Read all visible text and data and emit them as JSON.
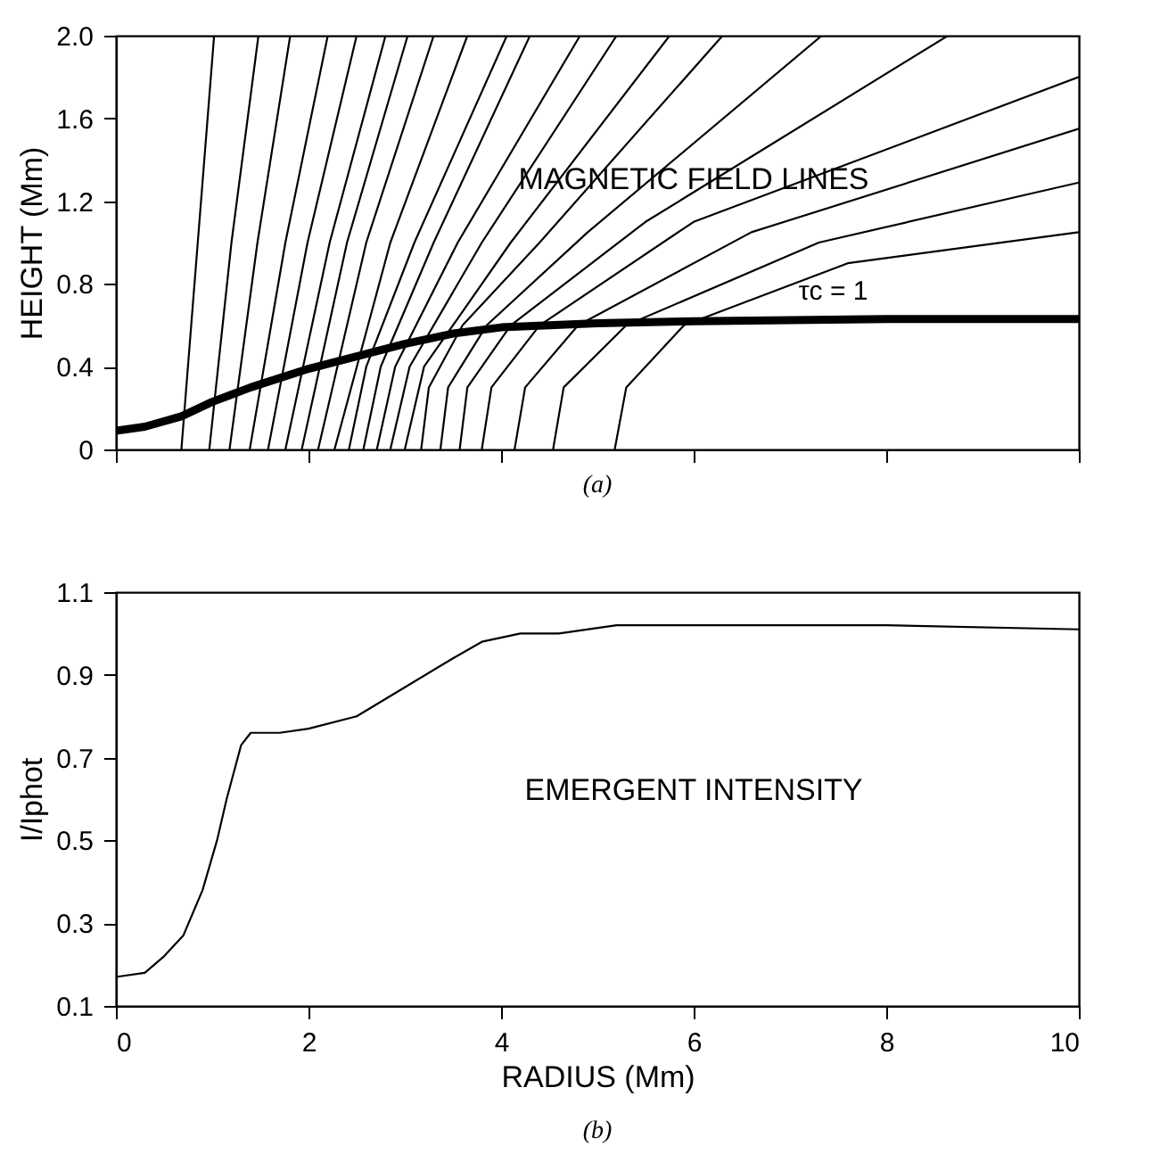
{
  "chart_data": [
    {
      "type": "line",
      "ylabel": "HEIGHT (Mm)",
      "xlim": [
        0,
        10
      ],
      "xticks": [
        0,
        2,
        4,
        6,
        8,
        10
      ],
      "ylim": [
        0,
        2
      ],
      "yticks": [
        0,
        0.4,
        0.8,
        1.2,
        1.6,
        {
          "value": 2,
          "label": "2.0"
        }
      ],
      "tick_labels": "y",
      "grid": false,
      "annotations": [
        "MAGNETIC FIELD LINES",
        "(a)"
      ],
      "series": [
        {
          "color": "#000000",
          "x": [
            0.68,
            0.85,
            1.02
          ],
          "values": [
            0,
            1,
            2
          ]
        },
        {
          "color": "#000000",
          "x": [
            0.97,
            1.2,
            1.48
          ],
          "values": [
            0,
            1,
            2
          ]
        },
        {
          "color": "#000000",
          "x": [
            1.18,
            1.47,
            1.81
          ],
          "values": [
            0,
            1,
            2
          ]
        },
        {
          "color": "#000000",
          "x": [
            1.39,
            1.76,
            2.2
          ],
          "values": [
            0,
            1,
            2
          ]
        },
        {
          "color": "#000000",
          "x": [
            1.58,
            1.99,
            2.5
          ],
          "values": [
            0,
            1,
            2
          ]
        },
        {
          "color": "#000000",
          "x": [
            1.76,
            2.22,
            2.8
          ],
          "values": [
            0,
            1,
            2
          ]
        },
        {
          "color": "#000000",
          "x": [
            1.93,
            2.4,
            3.03
          ],
          "values": [
            0,
            1,
            2
          ]
        },
        {
          "color": "#000000",
          "x": [
            2.1,
            2.6,
            3.3
          ],
          "values": [
            0,
            1,
            2
          ]
        },
        {
          "color": "#000000",
          "x": [
            2.27,
            2.85,
            3.65
          ],
          "values": [
            0,
            1,
            2
          ]
        },
        {
          "color": "#000000",
          "x": [
            2.42,
            2.6,
            3.1,
            4.06
          ],
          "values": [
            0,
            0.4,
            1,
            2
          ]
        },
        {
          "color": "#000000",
          "x": [
            2.57,
            2.75,
            3.3,
            4.3
          ],
          "values": [
            0,
            0.4,
            1,
            2
          ]
        },
        {
          "color": "#000000",
          "x": [
            2.71,
            2.9,
            3.55,
            4.82
          ],
          "values": [
            0,
            0.4,
            1,
            2
          ]
        },
        {
          "color": "#000000",
          "x": [
            2.85,
            3.05,
            3.8,
            5.2
          ],
          "values": [
            0,
            0.4,
            1,
            2
          ]
        },
        {
          "color": "#000000",
          "x": [
            3.0,
            3.2,
            4.1,
            5.75
          ],
          "values": [
            0,
            0.4,
            1,
            2
          ]
        },
        {
          "color": "#000000",
          "x": [
            3.17,
            3.25,
            3.6,
            4.4,
            6.3
          ],
          "values": [
            0,
            0.3,
            0.6,
            1,
            2
          ]
        },
        {
          "color": "#000000",
          "x": [
            3.37,
            3.45,
            3.85,
            4.9,
            7.33
          ],
          "values": [
            0,
            0.3,
            0.6,
            1.05,
            2
          ]
        },
        {
          "color": "#000000",
          "x": [
            3.57,
            3.65,
            4.1,
            5.5,
            8.64
          ],
          "values": [
            0,
            0.3,
            0.6,
            1.1,
            2
          ]
        },
        {
          "color": "#000000",
          "x": [
            3.8,
            3.9,
            4.4,
            6.0,
            10
          ],
          "values": [
            0,
            0.3,
            0.6,
            1.1,
            1.8
          ]
        },
        {
          "color": "#000000",
          "x": [
            4.14,
            4.25,
            4.8,
            6.6,
            10
          ],
          "values": [
            0,
            0.3,
            0.6,
            1.05,
            1.55
          ]
        },
        {
          "color": "#000000",
          "x": [
            4.54,
            4.65,
            5.3,
            7.3,
            10
          ],
          "values": [
            0,
            0.3,
            0.6,
            1.0,
            1.29
          ]
        },
        {
          "color": "#000000",
          "x": [
            5.18,
            5.3,
            5.9,
            7.6,
            10
          ],
          "values": [
            0,
            0.3,
            0.6,
            0.9,
            1.05
          ]
        },
        {
          "name": "τc = 1",
          "color": "#000000",
          "x": [
            0,
            0.3,
            0.68,
            1.0,
            1.4,
            2.0,
            2.5,
            3.0,
            3.5,
            4.0,
            5.0,
            6.0,
            8.0,
            10.0
          ],
          "values": [
            0.09,
            0.11,
            0.16,
            0.23,
            0.3,
            0.39,
            0.45,
            0.51,
            0.56,
            0.59,
            0.61,
            0.62,
            0.63,
            0.63
          ]
        }
      ]
    },
    {
      "type": "line",
      "xlabel": "RADIUS (Mm)",
      "ylabel": "I/Iphot",
      "xlim": [
        0,
        10
      ],
      "xticks": [
        0,
        2,
        4,
        6,
        8,
        10
      ],
      "ylim": [
        0.1,
        1.1
      ],
      "yticks": [
        0.1,
        0.3,
        0.5,
        0.7,
        0.9,
        1.1
      ],
      "grid": false,
      "annotations": [
        "EMERGENT INTENSITY",
        "(b)"
      ],
      "series": [
        {
          "color": "#000000",
          "x": [
            0,
            0.3,
            0.5,
            0.7,
            0.9,
            1.05,
            1.15,
            1.3,
            1.4,
            1.7,
            2.0,
            2.5,
            3.0,
            3.5,
            3.8,
            4.2,
            4.6,
            5.2,
            6,
            8,
            10
          ],
          "values": [
            0.17,
            0.18,
            0.22,
            0.27,
            0.38,
            0.5,
            0.6,
            0.73,
            0.76,
            0.76,
            0.77,
            0.8,
            0.87,
            0.94,
            0.98,
            1.0,
            1.0,
            1.02,
            1.02,
            1.02,
            1.01
          ]
        }
      ]
    }
  ]
}
